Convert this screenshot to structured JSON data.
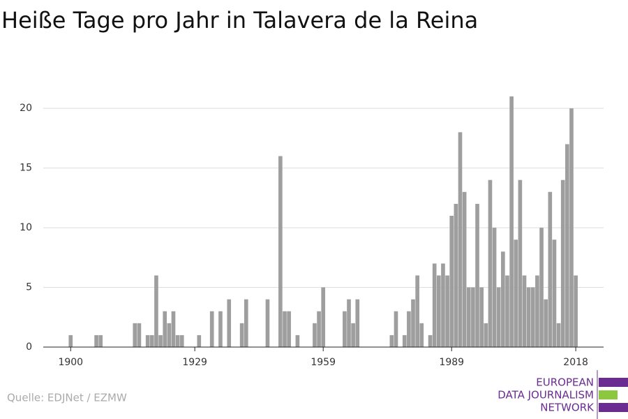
{
  "chart_data": {
    "type": "bar",
    "title": "Heiße Tage pro Jahr in Talavera de la Reina",
    "x": [
      1900,
      1901,
      1902,
      1903,
      1904,
      1905,
      1906,
      1907,
      1908,
      1909,
      1910,
      1911,
      1912,
      1913,
      1914,
      1915,
      1916,
      1917,
      1918,
      1919,
      1920,
      1921,
      1922,
      1923,
      1924,
      1925,
      1926,
      1927,
      1928,
      1929,
      1930,
      1931,
      1932,
      1933,
      1934,
      1935,
      1936,
      1937,
      1938,
      1939,
      1940,
      1941,
      1942,
      1943,
      1944,
      1945,
      1946,
      1947,
      1948,
      1949,
      1950,
      1951,
      1952,
      1953,
      1954,
      1955,
      1956,
      1957,
      1958,
      1959,
      1960,
      1961,
      1962,
      1963,
      1964,
      1965,
      1966,
      1967,
      1968,
      1969,
      1970,
      1971,
      1972,
      1973,
      1974,
      1975,
      1976,
      1977,
      1978,
      1979,
      1980,
      1981,
      1982,
      1983,
      1984,
      1985,
      1986,
      1987,
      1988,
      1989,
      1990,
      1991,
      1992,
      1993,
      1994,
      1995,
      1996,
      1997,
      1998,
      1999,
      2000,
      2001,
      2002,
      2003,
      2004,
      2005,
      2006,
      2007,
      2008,
      2009,
      2010,
      2011,
      2012,
      2013,
      2014,
      2015,
      2016,
      2017,
      2018
    ],
    "values": [
      1,
      0,
      0,
      0,
      0,
      0,
      1,
      1,
      0,
      0,
      0,
      0,
      0,
      0,
      0,
      2,
      2,
      0,
      1,
      1,
      6,
      1,
      3,
      2,
      3,
      1,
      1,
      0,
      0,
      0,
      1,
      0,
      0,
      3,
      0,
      3,
      0,
      4,
      0,
      0,
      2,
      4,
      0,
      0,
      0,
      0,
      4,
      0,
      0,
      16,
      3,
      3,
      0,
      1,
      0,
      0,
      0,
      2,
      3,
      5,
      0,
      0,
      0,
      0,
      3,
      4,
      2,
      4,
      0,
      0,
      0,
      0,
      0,
      0,
      0,
      1,
      3,
      0,
      1,
      3,
      4,
      6,
      2,
      0,
      1,
      7,
      6,
      7,
      6,
      11,
      12,
      18,
      13,
      5,
      5,
      12,
      5,
      2,
      14,
      10,
      5,
      8,
      6,
      21,
      9,
      14,
      6,
      5,
      5,
      6,
      10,
      4,
      13,
      9,
      2,
      14,
      17,
      20,
      6
    ],
    "color": "#9e9e9e",
    "xlim": [
      1893.6,
      2024.5
    ],
    "xticks": [
      1900,
      1929,
      1959,
      1989,
      2018
    ],
    "ylim": [
      0,
      22
    ],
    "yticks": [
      0,
      5,
      10,
      15,
      20
    ],
    "grid": true
  },
  "source": "Quelle: EDJNet / EZMW",
  "logo": [
    "EUROPEAN",
    "DATA JOURNALISM",
    "NETWORK"
  ]
}
